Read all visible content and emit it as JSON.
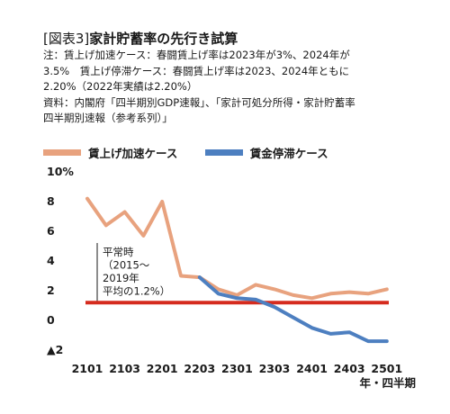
{
  "header": {
    "fig_label": "[図表3]",
    "title": "家計貯蓄率の先行き試算"
  },
  "notes": [
    "注：賃上げ加速ケース：春闘賃上げ率は2023年が3%、2024年が",
    "3.5%　賃上げ停滞ケース：春闘賃上げ率は2023、2024年ともに",
    "2.20%（2022年実績は2.20%）",
    "資料：内閣府「四半期別GDP速報」、「家計可処分所得・家計貯蓄率",
    "四半期別速報（参考系列）」"
  ],
  "chart_data": {
    "type": "line",
    "title": "家計貯蓄率の先行き試算",
    "ylim": [
      -2,
      10
    ],
    "y_ticks": [
      {
        "value": 10,
        "label": "10%"
      },
      {
        "value": 8,
        "label": "8"
      },
      {
        "value": 6,
        "label": "6"
      },
      {
        "value": 4,
        "label": "4"
      },
      {
        "value": 2,
        "label": "2"
      },
      {
        "value": 0,
        "label": "0"
      },
      {
        "value": -2,
        "label": "▲2"
      }
    ],
    "x_ticks": [
      {
        "index": 0,
        "label": "2101"
      },
      {
        "index": 2,
        "label": "2103"
      },
      {
        "index": 4,
        "label": "2201"
      },
      {
        "index": 6,
        "label": "2203"
      },
      {
        "index": 8,
        "label": "2301"
      },
      {
        "index": 10,
        "label": "2303"
      },
      {
        "index": 12,
        "label": "2401"
      },
      {
        "index": 14,
        "label": "2403"
      },
      {
        "index": 16,
        "label": "2501"
      }
    ],
    "x_unit_label": "年・四半期",
    "series": [
      {
        "name": "賃上げ加速ケース",
        "color": "#e8a27e",
        "points": [
          [
            0,
            8.2
          ],
          [
            1,
            6.4
          ],
          [
            2,
            7.3
          ],
          [
            3,
            5.7
          ],
          [
            4,
            8.0
          ],
          [
            5,
            3.0
          ],
          [
            6,
            2.9
          ],
          [
            7,
            2.1
          ],
          [
            8,
            1.7
          ],
          [
            9,
            2.4
          ],
          [
            10,
            2.1
          ],
          [
            11,
            1.7
          ],
          [
            12,
            1.5
          ],
          [
            13,
            1.8
          ],
          [
            14,
            1.9
          ],
          [
            15,
            1.8
          ],
          [
            16,
            2.1
          ]
        ]
      },
      {
        "name": "賃金停滞ケース",
        "color": "#4d7fc0",
        "points": [
          [
            6,
            2.9
          ],
          [
            7,
            1.8
          ],
          [
            8,
            1.5
          ],
          [
            9,
            1.4
          ],
          [
            10,
            0.9
          ],
          [
            11,
            0.2
          ],
          [
            12,
            -0.5
          ],
          [
            13,
            -0.9
          ],
          [
            14,
            -0.8
          ],
          [
            15,
            -1.4
          ],
          [
            16,
            -1.4
          ]
        ]
      }
    ],
    "reference_line": {
      "value": 1.2,
      "color": "#d52b1e"
    },
    "annotation": {
      "lines": [
        "平常時",
        "（2015～",
        "2019年",
        "平均の1.2%）"
      ]
    }
  }
}
